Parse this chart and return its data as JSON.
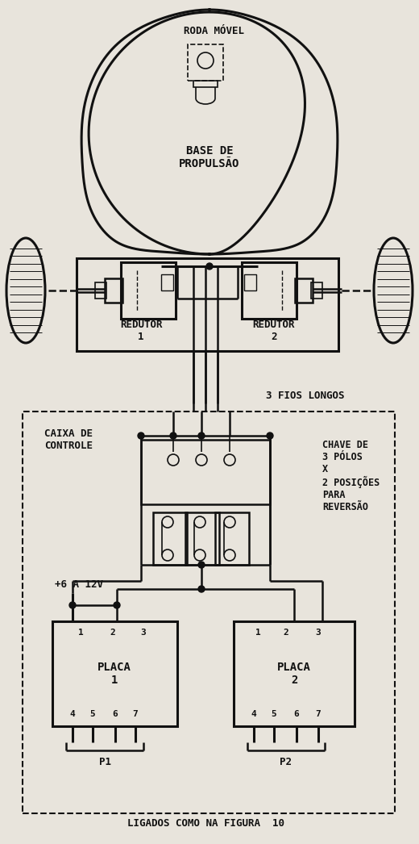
{
  "bg_color": "#e8e4dc",
  "line_color": "#111111",
  "labels": {
    "roda_movel": "RODA MÓVEL",
    "base_propulsao": "BASE DE\nPROPULSÃO",
    "redutor1": "REDUTOR\n1",
    "redutor2": "REDUTOR\n2",
    "fios_longos": "3 FIOS LONGOS",
    "caixa_controle": "CAIXA DE\nCONTROLE",
    "chave": "CHAVE DE\n3 PÓLOS\nX\n2 POSIÇÕES\nPARA\nREVERSÃO",
    "tensao": "+6 A 12V",
    "placa1": "PLACA\n1",
    "placa2": "PLACA\n2",
    "p1": "P1",
    "p2": "P2",
    "ligados": "LIGADOS COMO NA FIGURA  10"
  }
}
